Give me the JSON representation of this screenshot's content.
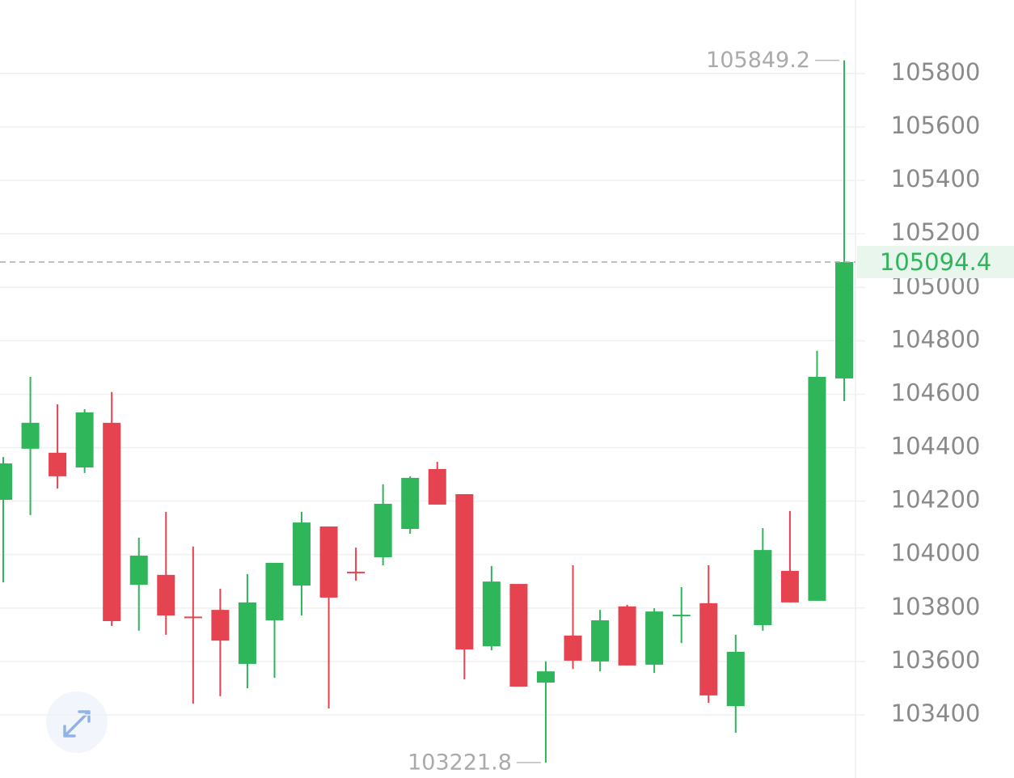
{
  "chart_data": {
    "type": "candlestick",
    "open": [
      104205,
      104396,
      104381,
      104326,
      104493,
      103887,
      103924,
      103768,
      103793,
      103591,
      103754,
      103884,
      104105,
      103936,
      103990,
      104096,
      104320,
      104226,
      103657,
      103890,
      103521,
      103697,
      103600,
      103806,
      103588,
      103769,
      103818,
      103433,
      103736,
      103939,
      103827,
      104659
    ],
    "high": [
      104365,
      104665,
      104562,
      104544,
      104608,
      104063,
      104160,
      104030,
      103872,
      103927,
      103969,
      104160,
      104105,
      104026,
      104263,
      104293,
      104347,
      104226,
      103957,
      103890,
      103600,
      103960,
      103793,
      103812,
      103799,
      103878,
      103960,
      103700,
      104099,
      104163,
      104762,
      105849.2
    ],
    "low": [
      103896,
      104148,
      104247,
      104305,
      103733,
      103715,
      103700,
      103442,
      103470,
      103500,
      103539,
      103772,
      103424,
      103902,
      103960,
      104078,
      104187,
      103533,
      103642,
      103506,
      103221.8,
      103572,
      103563,
      103585,
      103557,
      103669,
      103445,
      103333,
      103715,
      103821,
      103827,
      104574
    ],
    "close": [
      104341,
      104493,
      104293,
      104532,
      103751,
      103996,
      103772,
      103766,
      103678,
      103821,
      103969,
      104120,
      103839,
      103930,
      104190,
      104287,
      104187,
      103645,
      103899,
      103506,
      103563,
      103603,
      103754,
      103585,
      103787,
      103775,
      103473,
      103636,
      104017,
      103821,
      104665,
      105094.4
    ],
    "up_color": "#2fb55a",
    "down_color": "#e5434f",
    "ylim": [
      103164,
      106075
    ],
    "yticks": [
      103400,
      103600,
      103800,
      104000,
      104200,
      104400,
      104600,
      104800,
      105000,
      105200,
      105400,
      105600,
      105800
    ],
    "grid": true
  }
}
